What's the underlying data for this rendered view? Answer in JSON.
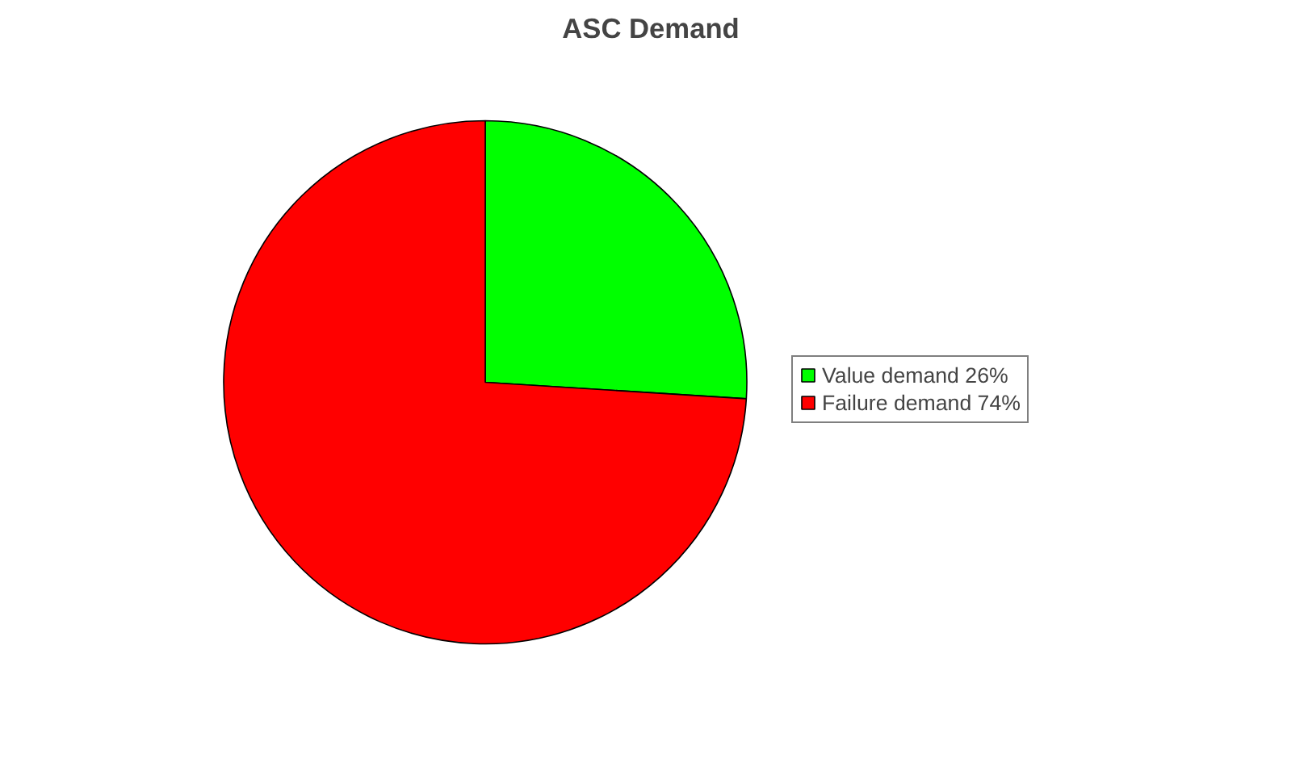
{
  "chart_data": {
    "type": "pie",
    "title": "ASC Demand",
    "categories": [
      "Value demand 26%",
      "Failure demand 74%"
    ],
    "values": [
      26,
      74
    ],
    "colors": [
      "#00ff00",
      "#ff0000"
    ],
    "legend": "right"
  }
}
